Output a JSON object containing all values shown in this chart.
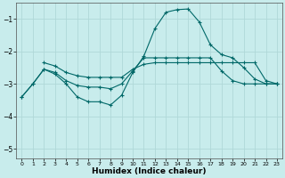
{
  "xlabel": "Humidex (Indice chaleur)",
  "bg_color": "#c8ecec",
  "grid_color": "#b0d8d8",
  "line_color": "#006868",
  "xlim": [
    -0.5,
    23.5
  ],
  "ylim": [
    -5.3,
    -0.5
  ],
  "yticks": [
    -5,
    -4,
    -3,
    -2,
    -1
  ],
  "xticks": [
    0,
    1,
    2,
    3,
    4,
    5,
    6,
    7,
    8,
    9,
    10,
    11,
    12,
    13,
    14,
    15,
    16,
    17,
    18,
    19,
    20,
    21,
    22,
    23
  ],
  "line1_x": [
    0,
    1,
    2,
    3,
    4,
    5,
    6,
    7,
    8,
    9,
    10,
    11,
    12,
    13,
    14,
    15,
    16,
    17,
    18,
    19,
    20,
    21,
    22,
    23
  ],
  "line1_y": [
    -3.4,
    -3.0,
    -2.55,
    -2.7,
    -3.0,
    -3.4,
    -3.55,
    -3.55,
    -3.65,
    -3.35,
    -2.65,
    -2.15,
    -1.3,
    -0.8,
    -0.72,
    -0.7,
    -1.1,
    -1.8,
    -2.1,
    -2.2,
    -2.5,
    -2.85,
    -3.0,
    -3.0
  ],
  "line2_x": [
    0,
    1,
    2,
    3,
    4,
    5,
    6,
    7,
    8,
    9,
    10,
    11,
    12,
    13,
    14,
    15,
    16,
    17,
    18,
    19,
    20,
    21,
    22,
    23
  ],
  "line2_y": [
    -3.4,
    -3.0,
    -2.55,
    -2.65,
    -2.9,
    -3.05,
    -3.1,
    -3.1,
    -3.15,
    -3.0,
    -2.6,
    -2.2,
    -2.2,
    -2.2,
    -2.2,
    -2.2,
    -2.2,
    -2.2,
    -2.6,
    -2.9,
    -3.0,
    -3.0,
    -3.0,
    -3.0
  ],
  "line3_x": [
    2,
    3,
    4,
    5,
    6,
    7,
    8,
    9,
    10,
    11,
    12,
    13,
    14,
    15,
    16,
    17,
    18,
    19,
    20,
    21,
    22,
    23
  ],
  "line3_y": [
    -2.35,
    -2.45,
    -2.65,
    -2.75,
    -2.8,
    -2.8,
    -2.8,
    -2.8,
    -2.55,
    -2.4,
    -2.35,
    -2.35,
    -2.35,
    -2.35,
    -2.35,
    -2.35,
    -2.35,
    -2.35,
    -2.35,
    -2.35,
    -2.9,
    -3.0
  ]
}
